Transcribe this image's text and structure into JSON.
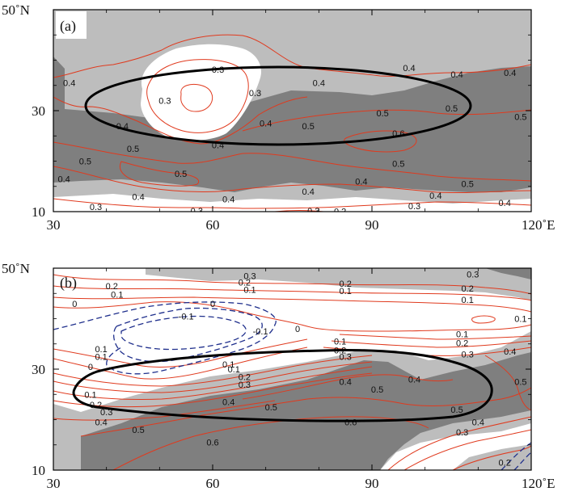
{
  "chart_data": [
    {
      "panel": "(a)",
      "type": "contour",
      "x_ticks": [
        {
          "v": 30,
          "label": "30"
        },
        {
          "v": 60,
          "label": "60"
        },
        {
          "v": 90,
          "label": "90"
        },
        {
          "v": 120,
          "label": "120˚E"
        }
      ],
      "y_ticks": [
        {
          "v": 10,
          "label": "10"
        },
        {
          "v": 30,
          "label": "30"
        },
        {
          "v": 50,
          "label": "50˚N"
        }
      ],
      "xlim": [
        30,
        120
      ],
      "ylim": [
        10,
        50
      ],
      "contour_labels": [
        {
          "text": "0.3",
          "x": 61,
          "y": 38.2
        },
        {
          "text": "0.3",
          "x": 51,
          "y": 32
        },
        {
          "text": "0.3",
          "x": 68,
          "y": 33.5
        },
        {
          "text": "0.4",
          "x": 33,
          "y": 35.5
        },
        {
          "text": "0.4",
          "x": 80,
          "y": 35.5
        },
        {
          "text": "0.4",
          "x": 97,
          "y": 38.5
        },
        {
          "text": "0.4",
          "x": 106,
          "y": 37.2
        },
        {
          "text": "0.4",
          "x": 116,
          "y": 37.5
        },
        {
          "text": "0.4",
          "x": 43,
          "y": 27
        },
        {
          "text": "0.4",
          "x": 61,
          "y": 23.2
        },
        {
          "text": "0.4",
          "x": 70,
          "y": 27.5
        },
        {
          "text": "0.5",
          "x": 78,
          "y": 27
        },
        {
          "text": "0.5",
          "x": 92,
          "y": 29.5
        },
        {
          "text": "0.5",
          "x": 105,
          "y": 30.5
        },
        {
          "text": "0.5",
          "x": 118,
          "y": 28.8
        },
        {
          "text": "0.6",
          "x": 95,
          "y": 25.5
        },
        {
          "text": "0.5",
          "x": 45,
          "y": 22.5
        },
        {
          "text": "0.5",
          "x": 36,
          "y": 20
        },
        {
          "text": "0.5",
          "x": 54,
          "y": 17.5
        },
        {
          "text": "0.5",
          "x": 95,
          "y": 19.5
        },
        {
          "text": "0.5",
          "x": 108,
          "y": 15.5
        },
        {
          "text": "0.4",
          "x": 32,
          "y": 16.5
        },
        {
          "text": "0.4",
          "x": 46,
          "y": 13
        },
        {
          "text": "0.4",
          "x": 63,
          "y": 12.5
        },
        {
          "text": "0.4",
          "x": 78,
          "y": 14
        },
        {
          "text": "0.4",
          "x": 88,
          "y": 16
        },
        {
          "text": "0.4",
          "x": 102,
          "y": 13.2
        },
        {
          "text": "0.4",
          "x": 115,
          "y": 11.8
        },
        {
          "text": "0.3",
          "x": 38,
          "y": 11
        },
        {
          "text": "0.3",
          "x": 57,
          "y": 10.2
        },
        {
          "text": "0.3",
          "x": 79,
          "y": 10.2
        },
        {
          "text": "0.3",
          "x": 98,
          "y": 11.1
        },
        {
          "text": "0.2",
          "x": 84,
          "y": 10.1
        }
      ]
    },
    {
      "panel": "(b)",
      "type": "contour",
      "x_ticks": [
        {
          "v": 30,
          "label": "30"
        },
        {
          "v": 60,
          "label": "60"
        },
        {
          "v": 90,
          "label": "90"
        },
        {
          "v": 120,
          "label": "120˚E"
        }
      ],
      "y_ticks": [
        {
          "v": 10,
          "label": "10"
        },
        {
          "v": 30,
          "label": "30"
        },
        {
          "v": 50,
          "label": "50˚N"
        }
      ],
      "xlim": [
        30,
        120
      ],
      "ylim": [
        10,
        50
      ],
      "contour_labels": [
        {
          "text": "0.3",
          "x": 67,
          "y": 48.5
        },
        {
          "text": "0.3",
          "x": 109,
          "y": 48.8
        },
        {
          "text": "0.2",
          "x": 66,
          "y": 47.2
        },
        {
          "text": "0.2",
          "x": 41,
          "y": 46.5
        },
        {
          "text": "0.2",
          "x": 85,
          "y": 47
        },
        {
          "text": "0.2",
          "x": 108,
          "y": 46
        },
        {
          "text": "0.1",
          "x": 42,
          "y": 44.8
        },
        {
          "text": "0.1",
          "x": 67,
          "y": 45.8
        },
        {
          "text": "0.1",
          "x": 85,
          "y": 45.5
        },
        {
          "text": "0.1",
          "x": 108,
          "y": 43.8
        },
        {
          "text": "0.1",
          "x": 118,
          "y": 40
        },
        {
          "text": "0",
          "x": 34,
          "y": 43
        },
        {
          "text": "0",
          "x": 60,
          "y": 43
        },
        {
          "text": "-0.1",
          "x": 55,
          "y": 40.5
        },
        {
          "text": "-0.1",
          "x": 69,
          "y": 37.5
        },
        {
          "text": "0.1",
          "x": 39,
          "y": 34
        },
        {
          "text": "0.1",
          "x": 39,
          "y": 32.5
        },
        {
          "text": "0",
          "x": 76,
          "y": 38
        },
        {
          "text": "0",
          "x": 37,
          "y": 30.5
        },
        {
          "text": "0.1",
          "x": 84,
          "y": 35.5
        },
        {
          "text": "0.1",
          "x": 107,
          "y": 37
        },
        {
          "text": "0.2",
          "x": 84,
          "y": 33.8
        },
        {
          "text": "0.2",
          "x": 107,
          "y": 35.2
        },
        {
          "text": "0.3",
          "x": 85,
          "y": 32.5
        },
        {
          "text": "0.3",
          "x": 108,
          "y": 33
        },
        {
          "text": "0.4",
          "x": 116,
          "y": 33.5
        },
        {
          "text": "0.1",
          "x": 63,
          "y": 31
        },
        {
          "text": "0.1",
          "x": 64,
          "y": 30
        },
        {
          "text": "0.2",
          "x": 66,
          "y": 28.5
        },
        {
          "text": "0.3",
          "x": 66,
          "y": 27
        },
        {
          "text": "0.4",
          "x": 85,
          "y": 27.5
        },
        {
          "text": "0.4",
          "x": 98,
          "y": 28
        },
        {
          "text": "0.5",
          "x": 91,
          "y": 26
        },
        {
          "text": "0.5",
          "x": 118,
          "y": 27.5
        },
        {
          "text": "0.4",
          "x": 63,
          "y": 23.5
        },
        {
          "text": "0.5",
          "x": 71,
          "y": 22.5
        },
        {
          "text": "0.5",
          "x": 106,
          "y": 22
        },
        {
          "text": "0.1",
          "x": 37,
          "y": 25
        },
        {
          "text": "0.2",
          "x": 38,
          "y": 23
        },
        {
          "text": "0.3",
          "x": 40,
          "y": 21.5
        },
        {
          "text": "0.4",
          "x": 39,
          "y": 19.5
        },
        {
          "text": "0.5",
          "x": 46,
          "y": 18
        },
        {
          "text": "0.6",
          "x": 60,
          "y": 15.5
        },
        {
          "text": "0.6",
          "x": 86,
          "y": 19.5
        },
        {
          "text": "0.4",
          "x": 110,
          "y": 19.5
        },
        {
          "text": "0.3",
          "x": 107,
          "y": 17.5
        },
        {
          "text": "0.2",
          "x": 115,
          "y": 11.5
        }
      ]
    }
  ]
}
